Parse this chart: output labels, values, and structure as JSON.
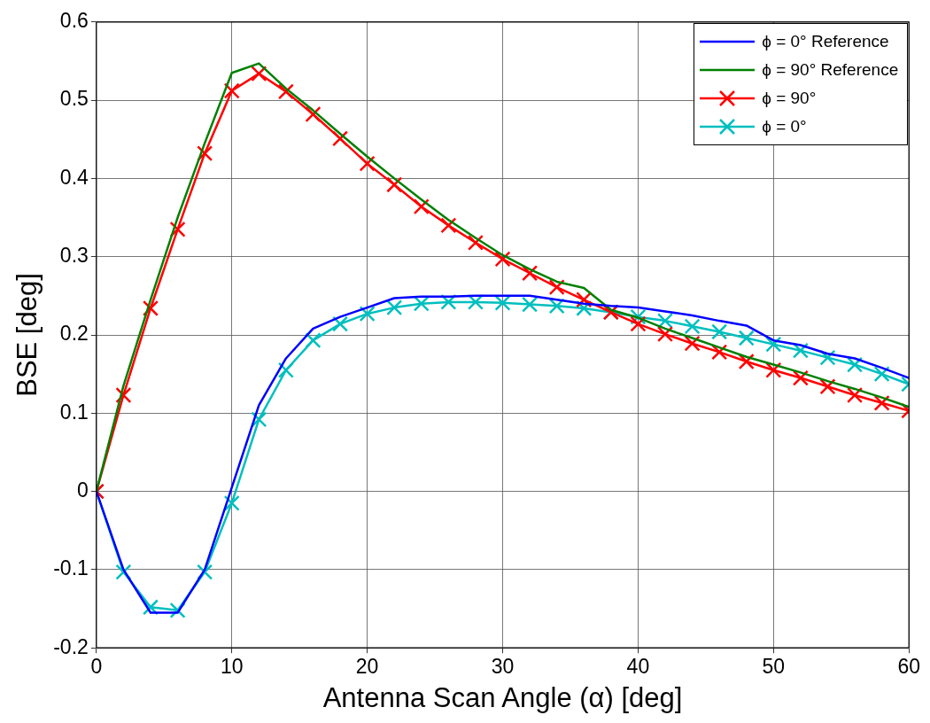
{
  "chart_data": {
    "type": "line",
    "xlabel": "Antenna Scan Angle (α) [deg]",
    "ylabel": "BSE [deg]",
    "x": [
      0,
      2,
      4,
      6,
      8,
      10,
      12,
      14,
      16,
      18,
      20,
      22,
      24,
      26,
      28,
      30,
      32,
      34,
      36,
      38,
      40,
      42,
      44,
      46,
      48,
      50,
      52,
      54,
      56,
      58,
      60
    ],
    "xlim": [
      0,
      60
    ],
    "xticks": [
      0,
      10,
      20,
      30,
      40,
      50,
      60
    ],
    "ylim": [
      -0.2,
      0.6
    ],
    "yticks": [
      -0.2,
      -0.1,
      0,
      0.1,
      0.2,
      0.3,
      0.4,
      0.5,
      0.6
    ],
    "grid": true,
    "legend": "top right",
    "line_style": "solid",
    "series": [
      {
        "name": "ϕ = 0° Reference",
        "color": "#0000ff",
        "marker": "none",
        "values": [
          0,
          -0.1,
          -0.155,
          -0.155,
          -0.1,
          0.005,
          0.11,
          0.17,
          0.208,
          0.223,
          0.235,
          0.247,
          0.249,
          0.249,
          0.25,
          0.25,
          0.25,
          0.245,
          0.24,
          0.237,
          0.235,
          0.23,
          0.225,
          0.218,
          0.212,
          0.193,
          0.187,
          0.176,
          0.17,
          0.158,
          0.145
        ]
      },
      {
        "name": "ϕ = 90° Reference",
        "color": "#008000",
        "marker": "none",
        "values": [
          0,
          0.135,
          0.245,
          0.35,
          0.445,
          0.535,
          0.547,
          0.515,
          0.487,
          0.457,
          0.428,
          0.4,
          0.373,
          0.347,
          0.324,
          0.302,
          0.284,
          0.268,
          0.26,
          0.232,
          0.222,
          0.208,
          0.196,
          0.184,
          0.172,
          0.162,
          0.152,
          0.141,
          0.131,
          0.12,
          0.108
        ]
      },
      {
        "name": "ϕ = 90°",
        "color": "#ff0000",
        "marker": "cross",
        "values": [
          0,
          0.123,
          0.234,
          0.335,
          0.432,
          0.512,
          0.534,
          0.511,
          0.482,
          0.451,
          0.419,
          0.392,
          0.364,
          0.34,
          0.318,
          0.297,
          0.279,
          0.261,
          0.245,
          0.229,
          0.214,
          0.201,
          0.189,
          0.178,
          0.166,
          0.155,
          0.145,
          0.134,
          0.123,
          0.113,
          0.103
        ]
      },
      {
        "name": "ϕ = 0°",
        "color": "#00bfbf",
        "marker": "cross",
        "values": [
          0,
          -0.103,
          -0.148,
          -0.152,
          -0.103,
          -0.015,
          0.092,
          0.155,
          0.193,
          0.214,
          0.227,
          0.235,
          0.24,
          0.242,
          0.242,
          0.241,
          0.239,
          0.237,
          0.234,
          0.229,
          0.223,
          0.218,
          0.211,
          0.204,
          0.196,
          0.188,
          0.18,
          0.171,
          0.162,
          0.15,
          0.137
        ]
      }
    ]
  }
}
